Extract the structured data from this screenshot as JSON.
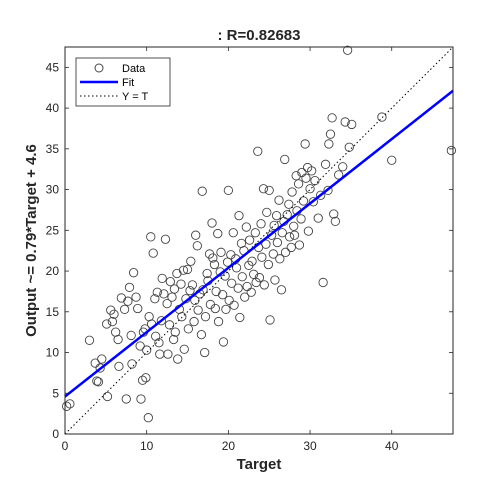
{
  "chart_data": {
    "type": "scatter",
    "title": ": R=0.82683",
    "xlabel": "Target",
    "ylabel": "Output ~= 0.79*Target + 4.6",
    "xlim": [
      0,
      47.5
    ],
    "ylim": [
      0,
      47.5
    ],
    "xticks": [
      0,
      10,
      20,
      30,
      40
    ],
    "yticks": [
      0,
      5,
      10,
      15,
      20,
      25,
      30,
      35,
      40,
      45
    ],
    "grid": false,
    "legend_position": "top-left",
    "fit": {
      "slope": 0.79,
      "intercept": 4.6,
      "color": "#0000ff"
    },
    "identity_line": true,
    "colors": {
      "data": "#444444",
      "fit": "#0000ff",
      "identity": "#000000"
    },
    "legend": [
      {
        "label": "Data",
        "marker": "circle"
      },
      {
        "label": "Fit",
        "marker": "solid-line"
      },
      {
        "label": "Y = T",
        "marker": "dotted-line"
      }
    ],
    "points": [
      [
        0.2,
        3.4
      ],
      [
        0.6,
        3.7
      ],
      [
        3,
        11.5
      ],
      [
        3.7,
        8.7
      ],
      [
        3.9,
        6.5
      ],
      [
        4.1,
        6.4
      ],
      [
        4.3,
        8.1
      ],
      [
        4.5,
        9.2
      ],
      [
        5.1,
        13.5
      ],
      [
        5.2,
        4.6
      ],
      [
        5.6,
        15.2
      ],
      [
        5.8,
        13.8
      ],
      [
        6,
        14.7
      ],
      [
        6.2,
        12.5
      ],
      [
        6.5,
        11.6
      ],
      [
        6.6,
        8.3
      ],
      [
        6.9,
        16.7
      ],
      [
        7.3,
        15.3
      ],
      [
        7.5,
        4.3
      ],
      [
        7.7,
        16.3
      ],
      [
        7.9,
        18
      ],
      [
        8.1,
        12.1
      ],
      [
        8.2,
        8.6
      ],
      [
        8.4,
        19.8
      ],
      [
        8.7,
        16.8
      ],
      [
        8.9,
        15.4
      ],
      [
        9.2,
        10.8
      ],
      [
        9.3,
        4.3
      ],
      [
        9.5,
        6.6
      ],
      [
        9.6,
        12.5
      ],
      [
        9.8,
        12.9
      ],
      [
        9.9,
        6.9
      ],
      [
        10,
        10.3
      ],
      [
        10.2,
        2
      ],
      [
        10.3,
        14.4
      ],
      [
        10.5,
        24.2
      ],
      [
        10.6,
        13.5
      ],
      [
        10.8,
        22.2
      ],
      [
        11,
        16.6
      ],
      [
        11.1,
        12
      ],
      [
        11.3,
        17.4
      ],
      [
        11.5,
        11.2
      ],
      [
        11.6,
        9.8
      ],
      [
        11.8,
        13.9
      ],
      [
        11.9,
        19.1
      ],
      [
        12.1,
        17.2
      ],
      [
        12.3,
        23.9
      ],
      [
        12.5,
        16
      ],
      [
        12.6,
        9.8
      ],
      [
        12.8,
        13.4
      ],
      [
        12.9,
        18.7
      ],
      [
        13.1,
        16.8
      ],
      [
        13.3,
        11.6
      ],
      [
        13.4,
        17.8
      ],
      [
        13.5,
        12.5
      ],
      [
        13.7,
        19.7
      ],
      [
        13.8,
        9.2
      ],
      [
        14,
        15.3
      ],
      [
        14.2,
        18.4
      ],
      [
        14.3,
        14.4
      ],
      [
        14.5,
        20.1
      ],
      [
        14.6,
        10.4
      ],
      [
        14.8,
        16.6
      ],
      [
        15,
        20.2
      ],
      [
        15.1,
        12.9
      ],
      [
        15.3,
        17.6
      ],
      [
        15.4,
        21.2
      ],
      [
        15.6,
        18.3
      ],
      [
        15.8,
        13.8
      ],
      [
        15.9,
        16.4
      ],
      [
        16,
        24.4
      ],
      [
        16.2,
        23.1
      ],
      [
        16.3,
        15.2
      ],
      [
        16.5,
        17.2
      ],
      [
        16.7,
        12.2
      ],
      [
        16.8,
        29.8
      ],
      [
        16.9,
        17.7
      ],
      [
        17.1,
        10
      ],
      [
        17.2,
        14.4
      ],
      [
        17.4,
        19.7
      ],
      [
        17.5,
        18.8
      ],
      [
        17.7,
        22.1
      ],
      [
        17.8,
        15.9
      ],
      [
        18,
        25.9
      ],
      [
        18.1,
        21.6
      ],
      [
        18.3,
        20.8
      ],
      [
        18.4,
        15.4
      ],
      [
        18.5,
        17.5
      ],
      [
        18.7,
        24.6
      ],
      [
        18.8,
        13.8
      ],
      [
        19,
        19.9
      ],
      [
        19.1,
        22.3
      ],
      [
        19.3,
        17.1
      ],
      [
        19.4,
        11.3
      ],
      [
        19.6,
        19.4
      ],
      [
        19.7,
        15.3
      ],
      [
        19.9,
        21.1
      ],
      [
        20,
        29.9
      ],
      [
        20.1,
        16.4
      ],
      [
        20.3,
        22
      ],
      [
        20.4,
        18.5
      ],
      [
        20.6,
        24.7
      ],
      [
        20.7,
        15.8
      ],
      [
        20.9,
        21.5
      ],
      [
        21,
        20.4
      ],
      [
        21.2,
        17.9
      ],
      [
        21.3,
        26.8
      ],
      [
        21.4,
        14.3
      ],
      [
        21.6,
        23.4
      ],
      [
        21.7,
        19.3
      ],
      [
        21.9,
        22.5
      ],
      [
        22,
        16.8
      ],
      [
        22.2,
        25.4
      ],
      [
        22.3,
        18.1
      ],
      [
        22.5,
        20.7
      ],
      [
        22.6,
        23.8
      ],
      [
        22.8,
        17.4
      ],
      [
        22.9,
        21.2
      ],
      [
        23.1,
        19.6
      ],
      [
        23.3,
        24.7
      ],
      [
        23.4,
        18.6
      ],
      [
        23.6,
        34.7
      ],
      [
        23.7,
        22.9
      ],
      [
        23.8,
        19.2
      ],
      [
        24,
        25.8
      ],
      [
        24.1,
        21.7
      ],
      [
        24.3,
        30.1
      ],
      [
        24.4,
        18.3
      ],
      [
        24.6,
        23.3
      ],
      [
        24.7,
        27.2
      ],
      [
        24.9,
        20.8
      ],
      [
        25,
        29.9
      ],
      [
        25.1,
        14
      ],
      [
        25.3,
        24.4
      ],
      [
        25.5,
        22.1
      ],
      [
        25.6,
        25.6
      ],
      [
        25.7,
        18.9
      ],
      [
        25.9,
        26.8
      ],
      [
        26,
        23.5
      ],
      [
        26.2,
        28.7
      ],
      [
        26.3,
        21.5
      ],
      [
        26.5,
        17.7
      ],
      [
        26.6,
        24.7
      ],
      [
        26.8,
        26.1
      ],
      [
        26.9,
        33.7
      ],
      [
        27,
        22.3
      ],
      [
        27.2,
        26.9
      ],
      [
        27.4,
        28.2
      ],
      [
        27.5,
        24.2
      ],
      [
        27.7,
        22.9
      ],
      [
        27.8,
        29.7
      ],
      [
        28,
        25.5
      ],
      [
        28.1,
        24.4
      ],
      [
        28.3,
        31.7
      ],
      [
        28.4,
        27.4
      ],
      [
        28.6,
        30.7
      ],
      [
        28.7,
        23.2
      ],
      [
        28.9,
        26.4
      ],
      [
        29,
        32.1
      ],
      [
        29.2,
        28.6
      ],
      [
        29.4,
        35.6
      ],
      [
        29.5,
        31.4
      ],
      [
        29.7,
        32.7
      ],
      [
        29.8,
        24.9
      ],
      [
        30,
        30.1
      ],
      [
        30.2,
        32.3
      ],
      [
        30.4,
        28.5
      ],
      [
        30.6,
        31.1
      ],
      [
        31,
        26.5
      ],
      [
        31.3,
        29.3
      ],
      [
        31.6,
        18.6
      ],
      [
        31.9,
        33.1
      ],
      [
        32.2,
        29.9
      ],
      [
        32.3,
        35.6
      ],
      [
        32.5,
        36.8
      ],
      [
        32.7,
        38.8
      ],
      [
        32.9,
        27
      ],
      [
        33.1,
        26.1
      ],
      [
        33.5,
        31.8
      ],
      [
        34,
        32.8
      ],
      [
        34.3,
        38.3
      ],
      [
        34.6,
        47.1
      ],
      [
        34.8,
        35.2
      ],
      [
        35.1,
        38
      ],
      [
        38.8,
        38.9
      ],
      [
        40,
        33.6
      ],
      [
        47.3,
        34.8
      ]
    ]
  }
}
